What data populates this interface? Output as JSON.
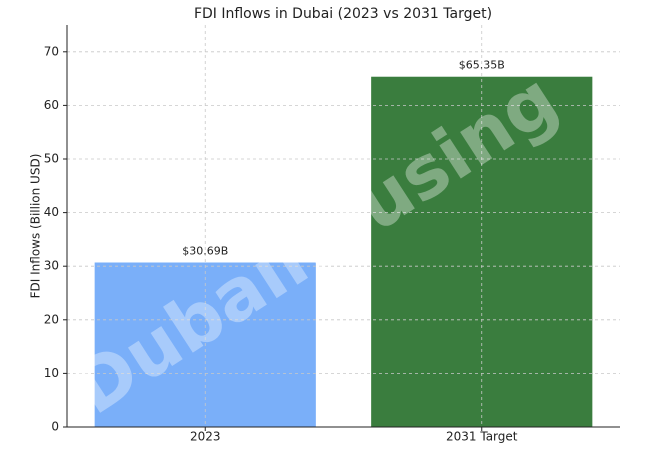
{
  "chart_data": {
    "type": "bar",
    "title": "FDI Inflows in Dubai (2023 vs 2031 Target)",
    "y_label": "FDI Inflows (Billion USD)",
    "categories": [
      "2023",
      "2031 Target"
    ],
    "values": [
      30.69,
      65.35
    ],
    "value_labels": [
      "$30.69B",
      "$65.35B"
    ],
    "colors": [
      "#7aaff9",
      "#3a7d3e"
    ],
    "ylim": [
      0,
      75
    ],
    "yticks": [
      0,
      10,
      20,
      30,
      40,
      50,
      60,
      70
    ],
    "grid": true,
    "watermark": "Dubaihousing"
  }
}
